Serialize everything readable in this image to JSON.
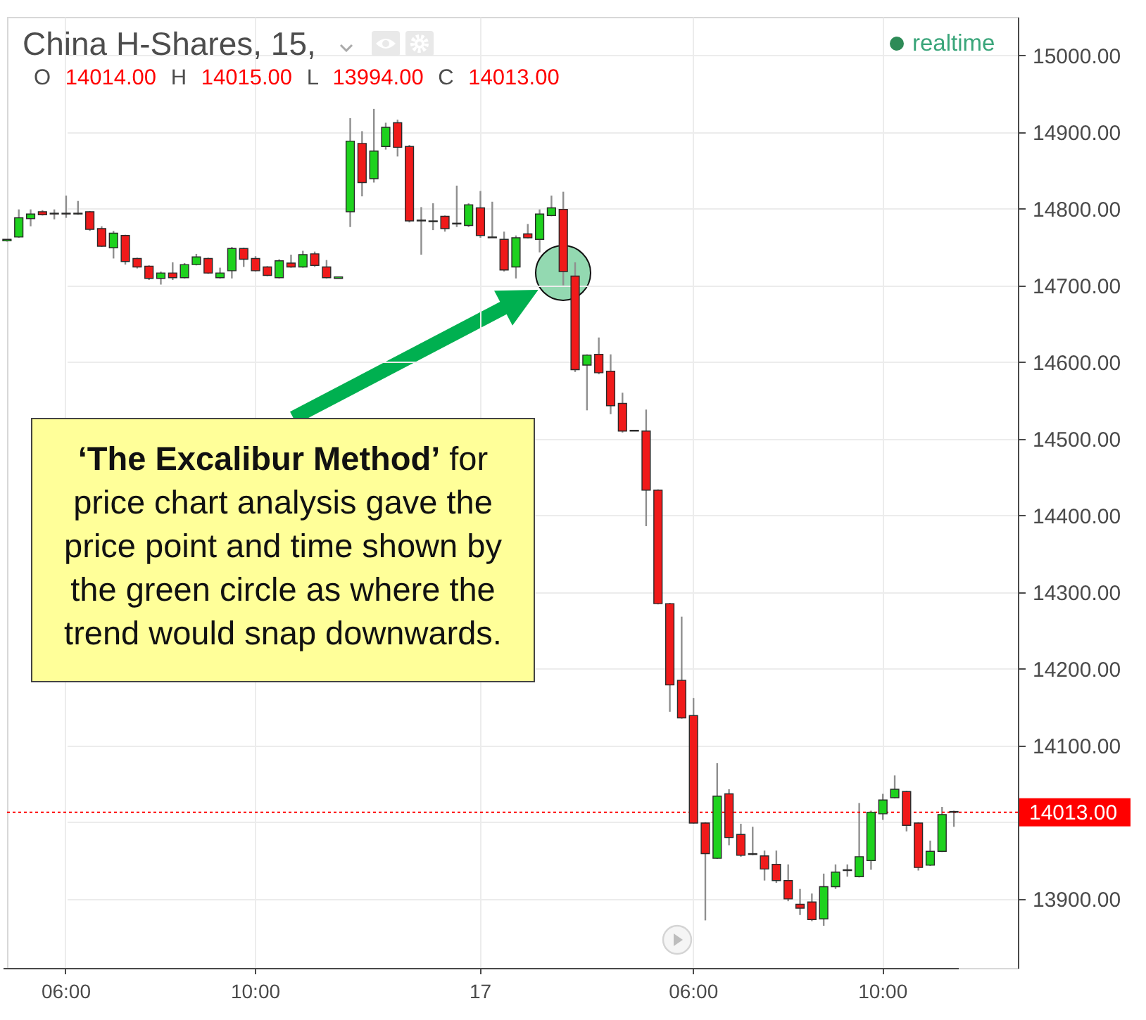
{
  "chart_data": {
    "type": "candlestick",
    "title": "China H-Shares, 15,",
    "subtitle": "O 14014.00 H 14015.00 L 13994.00 C 14013.00",
    "categories": [
      null,
      null,
      null,
      null,
      null,
      "06:00",
      null,
      null,
      null,
      null,
      null,
      null,
      null,
      null,
      null,
      null,
      null,
      null,
      null,
      null,
      null,
      "10:00",
      null,
      null,
      null,
      null,
      null,
      null,
      null,
      null,
      null,
      null,
      null,
      null,
      null,
      null,
      null,
      null,
      null,
      null,
      "17",
      null,
      null,
      null,
      null,
      null,
      null,
      null,
      null,
      null,
      null,
      null,
      null,
      null,
      null,
      null,
      null,
      null,
      "06:00",
      null,
      null,
      null,
      null,
      null,
      null,
      null,
      null,
      null,
      null,
      null,
      null,
      null,
      null,
      null,
      "10:00",
      null,
      null,
      null,
      null,
      null,
      null
    ],
    "ohlc": [
      [
        14758,
        14760,
        14757,
        14760
      ],
      [
        14763,
        14799,
        14762,
        14788
      ],
      [
        14787,
        14799,
        14777,
        14793
      ],
      [
        14796,
        14798,
        14791,
        14792
      ],
      [
        14794,
        14799,
        14786,
        14793
      ],
      [
        14794,
        14817,
        14788,
        14793
      ],
      [
        14793,
        14810,
        14792,
        14794
      ],
      [
        14796,
        14797,
        14771,
        14773
      ],
      [
        14774,
        14777,
        14750,
        14751
      ],
      [
        14749,
        14771,
        14735,
        14768
      ],
      [
        14765,
        14766,
        14727,
        14731
      ],
      [
        14735,
        14736,
        14722,
        14724
      ],
      [
        14725,
        14726,
        14707,
        14709
      ],
      [
        14709,
        14718,
        14701,
        14716
      ],
      [
        14716,
        14730,
        14707,
        14710
      ],
      [
        14710,
        14729,
        14709,
        14727
      ],
      [
        14727,
        14741,
        14726,
        14737
      ],
      [
        14735,
        14736,
        14715,
        14716
      ],
      [
        14710,
        14723,
        14709,
        14716
      ],
      [
        14719,
        14750,
        14709,
        14748
      ],
      [
        14748,
        14749,
        14724,
        14734
      ],
      [
        14735,
        14738,
        14718,
        14719
      ],
      [
        14724,
        14725,
        14712,
        14713
      ],
      [
        14710,
        14734,
        14709,
        14732
      ],
      [
        14729,
        14740,
        14723,
        14724
      ],
      [
        14724,
        14745,
        14723,
        14740
      ],
      [
        14741,
        14744,
        14724,
        14726
      ],
      [
        14724,
        14733,
        14709,
        14710
      ],
      [
        14709,
        14711,
        14709,
        14711
      ],
      [
        14796,
        14918,
        14776,
        14888
      ],
      [
        14885,
        14901,
        14816,
        14834
      ],
      [
        14839,
        14930,
        14834,
        14875
      ],
      [
        14881,
        14912,
        14877,
        14906
      ],
      [
        14912,
        14916,
        14868,
        14880
      ],
      [
        14881,
        14883,
        14782,
        14784
      ],
      [
        14785,
        14802,
        14740,
        14784
      ],
      [
        14783,
        14807,
        14772,
        14784
      ],
      [
        14790,
        14791,
        14770,
        14774
      ],
      [
        14780,
        14830,
        14776,
        14781
      ],
      [
        14778,
        14807,
        14776,
        14805
      ],
      [
        14801,
        14823,
        14762,
        14765
      ],
      [
        14762,
        14809,
        14762,
        14763
      ],
      [
        14760,
        14770,
        14718,
        14720
      ],
      [
        14724,
        14765,
        14709,
        14762
      ],
      [
        14767,
        14780,
        14761,
        14762
      ],
      [
        14760,
        14799,
        14743,
        14793
      ],
      [
        14791,
        14817,
        14790,
        14801
      ],
      [
        14799,
        14822,
        14700,
        14718
      ],
      [
        14712,
        14730,
        14587,
        14590
      ],
      [
        14596,
        14610,
        14537,
        14609
      ],
      [
        14610,
        14632,
        14584,
        14586
      ],
      [
        14588,
        14610,
        14532,
        14543
      ],
      [
        14546,
        14560,
        14508,
        14510
      ],
      [
        14510,
        14511,
        14510,
        14511
      ],
      [
        14510,
        14538,
        14386,
        14433
      ],
      [
        14433,
        14434,
        14284,
        14285
      ],
      [
        14285,
        14286,
        14144,
        14179
      ],
      [
        14185,
        14268,
        14135,
        14136
      ],
      [
        14139,
        14162,
        13998,
        13999
      ],
      [
        13999,
        14000,
        13872,
        13959
      ],
      [
        13953,
        14077,
        13952,
        14034
      ],
      [
        14037,
        14043,
        13970,
        13980
      ],
      [
        13984,
        13998,
        13955,
        13957
      ],
      [
        13958,
        13994,
        13957,
        13959
      ],
      [
        13956,
        13963,
        13924,
        13939
      ],
      [
        13945,
        13963,
        13921,
        13924
      ],
      [
        13924,
        13945,
        13897,
        13900
      ],
      [
        13893,
        13913,
        13879,
        13888
      ],
      [
        13896,
        13907,
        13871,
        13873
      ],
      [
        13874,
        13933,
        13865,
        13916
      ],
      [
        13916,
        13945,
        13913,
        13935
      ],
      [
        13937,
        13945,
        13929,
        13938
      ],
      [
        13929,
        14025,
        13928,
        13955
      ],
      [
        13950,
        14015,
        13938,
        14013
      ],
      [
        14011,
        14037,
        14003,
        14029
      ],
      [
        14032,
        14061,
        14031,
        14043
      ],
      [
        14040,
        14041,
        13988,
        13996
      ],
      [
        13999,
        14000,
        13937,
        13941
      ],
      [
        13944,
        13976,
        13943,
        13962
      ],
      [
        13962,
        14020,
        13961,
        14010
      ],
      [
        14014,
        14015,
        13994,
        14013
      ]
    ],
    "colors": [
      "#1ed21e",
      "#1ed21e",
      "#1ed21e",
      "#f01a1a",
      "#f01a1a",
      "#f01a1a",
      "#1ed21e",
      "#f01a1a",
      "#f01a1a",
      "#1ed21e",
      "#f01a1a",
      "#f01a1a",
      "#f01a1a",
      "#1ed21e",
      "#f01a1a",
      "#1ed21e",
      "#1ed21e",
      "#f01a1a",
      "#1ed21e",
      "#1ed21e",
      "#f01a1a",
      "#f01a1a",
      "#f01a1a",
      "#1ed21e",
      "#f01a1a",
      "#1ed21e",
      "#f01a1a",
      "#f01a1a",
      "#1ed21e",
      "#1ed21e",
      "#f01a1a",
      "#1ed21e",
      "#1ed21e",
      "#f01a1a",
      "#f01a1a",
      "#f01a1a",
      "#1ed21e",
      "#f01a1a",
      "#1ed21e",
      "#1ed21e",
      "#f01a1a",
      "#1ed21e",
      "#f01a1a",
      "#1ed21e",
      "#f01a1a",
      "#1ed21e",
      "#1ed21e",
      "#f01a1a",
      "#f01a1a",
      "#1ed21e",
      "#f01a1a",
      "#f01a1a",
      "#f01a1a",
      "#1ed21e",
      "#f01a1a",
      "#f01a1a",
      "#f01a1a",
      "#f01a1a",
      "#f01a1a",
      "#f01a1a",
      "#1ed21e",
      "#f01a1a",
      "#f01a1a",
      "#1ed21e",
      "#f01a1a",
      "#f01a1a",
      "#f01a1a",
      "#f01a1a",
      "#f01a1a",
      "#1ed21e",
      "#1ed21e",
      "#1ed21e",
      "#1ed21e",
      "#1ed21e",
      "#1ed21e",
      "#1ed21e",
      "#f01a1a",
      "#f01a1a",
      "#1ed21e",
      "#1ed21e",
      "#f01a1a"
    ],
    "ylim": [
      13810,
      15050
    ],
    "yticks": [
      {
        "value": 13900,
        "label": "13900.00"
      },
      {
        "value": 14000,
        "label": null
      },
      {
        "value": 14100,
        "label": "14100.00"
      },
      {
        "value": 14200,
        "label": "14200.00"
      },
      {
        "value": 14300,
        "label": "14300.00"
      },
      {
        "value": 14400,
        "label": "14400.00"
      },
      {
        "value": 14500,
        "label": "14500.00"
      },
      {
        "value": 14600,
        "label": "14600.00"
      },
      {
        "value": 14700,
        "label": "14700.00"
      },
      {
        "value": 14800,
        "label": "14800.00"
      },
      {
        "value": 14900,
        "label": "14900.00"
      },
      {
        "value": 15000,
        "label": "15000.00"
      }
    ],
    "grid": true,
    "ref_lines": [
      {
        "axis": "y",
        "value": 14013,
        "label": "14013.00",
        "color": "#ff0000",
        "line_style": "dotted"
      }
    ],
    "annotations": [
      "realtime",
      "‘The Excalibur Method’ for price chart analysis gave the price point and time shown by the green circle as where the trend would snap downwards."
    ]
  }
}
